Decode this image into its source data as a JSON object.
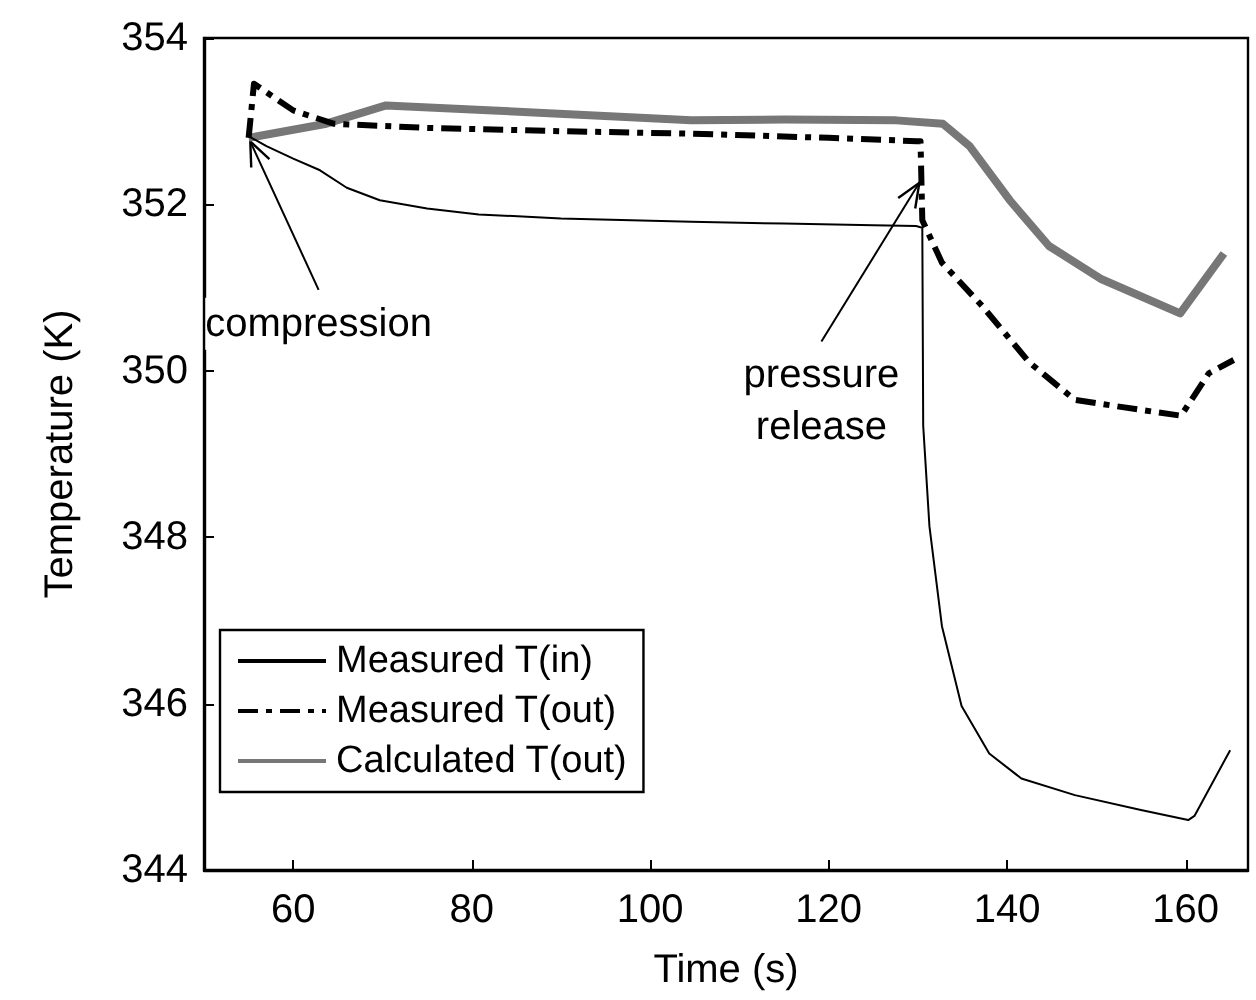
{
  "chart_data": {
    "type": "line",
    "xlabel": "Time (s)",
    "ylabel": "Temperature (K)",
    "xlim": [
      50,
      167
    ],
    "xticks": [
      60,
      80,
      100,
      120,
      140,
      160
    ],
    "ylim": [
      344,
      354
    ],
    "yticks": [
      344,
      346,
      348,
      350,
      352,
      354
    ],
    "grid": false,
    "legend": "bottom left",
    "marker": "none",
    "annotations": [
      {
        "text": "compression",
        "x": 55,
        "y": 352.8
      },
      {
        "text": "pressure\nrelease",
        "x": 130.4,
        "y": 352.3
      }
    ],
    "series": [
      {
        "name": "Measured T(in)",
        "color": "#000000",
        "line_style": "solid",
        "x": [
          55,
          57,
          60,
          63,
          66,
          69.7,
          75,
          80.8,
          90,
          104.6,
          115,
          125,
          129.8,
          130.5,
          130.6,
          131.3,
          132.7,
          134.9,
          138,
          141.6,
          147.6,
          155,
          160.3,
          161,
          165
        ],
        "values": [
          352.82,
          352.7,
          352.55,
          352.41,
          352.2,
          352.05,
          351.95,
          351.88,
          351.83,
          351.79,
          351.77,
          351.75,
          351.74,
          351.72,
          349.34,
          348.13,
          346.93,
          345.97,
          345.4,
          345.1,
          344.9,
          344.72,
          344.6,
          344.65,
          345.44
        ]
      },
      {
        "name": "Measured T(out)",
        "color": "#000000",
        "line_style": "dashed",
        "x": [
          55,
          55.6,
          60,
          64.5,
          74.8,
          90,
          104.6,
          120,
          129.9,
          130.3,
          130.5,
          132.7,
          137.2,
          142.5,
          147.6,
          155,
          159.5,
          162.6,
          165.4
        ],
        "values": [
          352.8,
          353.45,
          353.13,
          352.97,
          352.92,
          352.88,
          352.85,
          352.8,
          352.76,
          352.76,
          351.81,
          351.3,
          350.78,
          350.1,
          349.65,
          349.53,
          349.46,
          349.97,
          350.13
        ]
      },
      {
        "name": "Calculated T(out)",
        "color": "#777777",
        "line_style": "solid",
        "x": [
          55,
          63.7,
          70.4,
          82.4,
          104.6,
          115,
          127.6,
          132.8,
          135.8,
          140.3,
          144.7,
          150.6,
          159.4,
          164.3
        ],
        "values": [
          352.8,
          352.97,
          353.19,
          353.13,
          353.01,
          353.02,
          353.01,
          352.97,
          352.7,
          352.05,
          351.5,
          351.1,
          350.69,
          351.41
        ]
      }
    ]
  }
}
